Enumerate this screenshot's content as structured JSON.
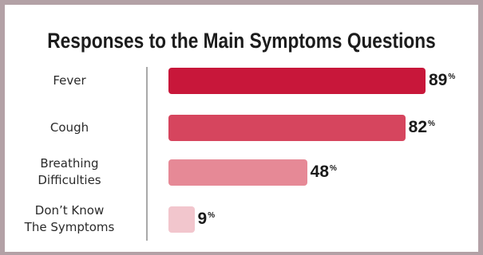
{
  "chart_data": {
    "type": "bar",
    "orientation": "horizontal",
    "title": "Responses to the Main Symptoms Questions",
    "categories": [
      "Fever",
      "Cough",
      "Breathing Difficulties",
      "Don’t Know The Symptoms"
    ],
    "category_lines": [
      [
        "Fever"
      ],
      [
        "Cough"
      ],
      [
        "Breathing",
        "Difficulties"
      ],
      [
        "Don’t Know",
        "The Symptoms"
      ]
    ],
    "values": [
      89,
      82,
      48,
      9
    ],
    "unit": "%",
    "colors": [
      "#c8173a",
      "#d6455e",
      "#e68996",
      "#f2c6cd"
    ],
    "xlim": [
      0,
      89
    ],
    "grid": false,
    "legend": "none"
  }
}
